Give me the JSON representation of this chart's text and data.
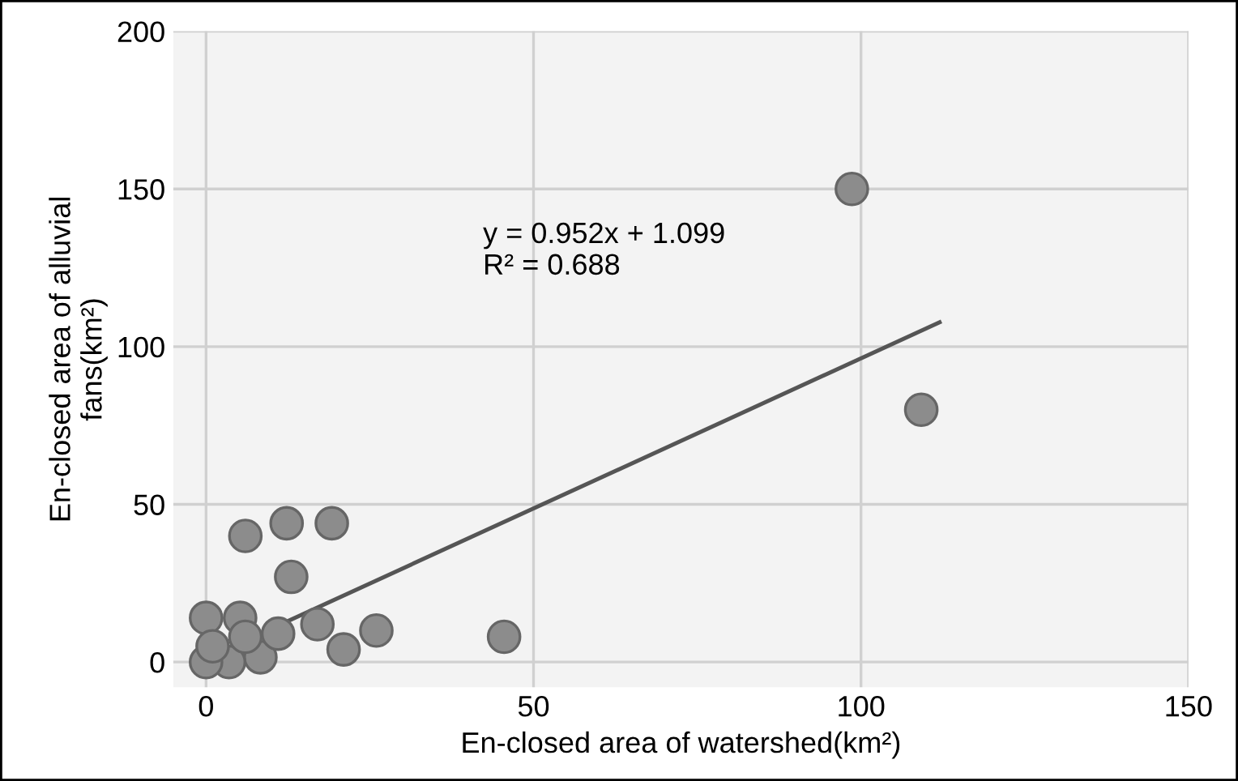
{
  "chart_data": {
    "type": "scatter",
    "xlabel": "En-closed area of watershed(km²)",
    "ylabel": "En-closed area of alluvial\nfans(km²)",
    "xlim": [
      -5,
      150
    ],
    "ylim": [
      -8,
      200
    ],
    "xticks": [
      0,
      50,
      100,
      150
    ],
    "yticks": [
      0,
      50,
      100,
      150,
      200
    ],
    "grid": true,
    "annotations": [
      "y = 0.952x + 1.099\nR² = 0.688"
    ],
    "series": [
      {
        "color": "#8c8c8c",
        "marker": "circle",
        "x": [
          98.6,
          109.2,
          6,
          12.3,
          19.2,
          13,
          45.5,
          26,
          21,
          8.3,
          5.2,
          0,
          3.5,
          0,
          6,
          17,
          11,
          1
        ],
        "values": [
          150,
          80,
          40,
          44,
          44,
          27,
          8,
          10,
          4,
          1.5,
          14,
          14,
          0,
          0,
          8,
          12,
          9,
          5
        ]
      },
      {
        "type": "line",
        "color": "#555555",
        "x": [
          0,
          112
        ],
        "values": [
          1.1,
          107.7
        ],
        "marker": "none"
      }
    ]
  }
}
